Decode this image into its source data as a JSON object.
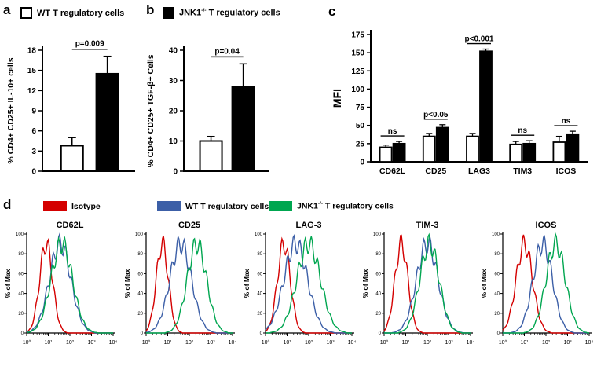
{
  "panel_labels": {
    "a": "a",
    "b": "b",
    "c": "c",
    "d": "d"
  },
  "legend_top": {
    "wt_label": "WT T regulatory cells",
    "jnk_base": "JNK1",
    "jnk_sup": "-/-",
    "jnk_rest": "T regulatory cells"
  },
  "legend_d": {
    "isotype": "Isotype",
    "wt_label": "WT T regulatory cells",
    "jnk_base": "JNK1",
    "jnk_sup": "-/-",
    "jnk_rest": "T regulatory cells"
  },
  "colors": {
    "bar_white": "#ffffff",
    "bar_black": "#000000",
    "isotype_red": "#d40000",
    "wt_blue": "#3c5fa7",
    "jnk_green": "#00a650"
  },
  "chart_data": [
    {
      "id": "panel_a",
      "type": "bar",
      "ylabel": "% CD4+ CD25+ IL-10+ cells",
      "ylim": [
        0,
        18
      ],
      "yticks": [
        0,
        3,
        6,
        9,
        12,
        15,
        18
      ],
      "series": [
        {
          "name": "WT T regulatory cells",
          "value": 3.8,
          "error": 1.2,
          "fill": "#ffffff"
        },
        {
          "name": "JNK1-/- T regulatory cells",
          "value": 14.5,
          "error": 2.6,
          "fill": "#000000"
        }
      ],
      "p_label": "p=0.009"
    },
    {
      "id": "panel_b",
      "type": "bar",
      "ylabel": "% CD4+ CD25+ TGF-β+ Cells",
      "ylim": [
        0,
        40
      ],
      "yticks": [
        0,
        10,
        20,
        30,
        40
      ],
      "series": [
        {
          "name": "WT T regulatory cells",
          "value": 10,
          "error": 1.5,
          "fill": "#ffffff"
        },
        {
          "name": "JNK1-/- T regulatory cells",
          "value": 28,
          "error": 7.5,
          "fill": "#000000"
        }
      ],
      "p_label": "p=0.04"
    },
    {
      "id": "panel_c",
      "type": "grouped-bar",
      "ylabel": "MFI",
      "ylim": [
        0,
        175
      ],
      "yticks": [
        0,
        25,
        50,
        75,
        100,
        125,
        150,
        175
      ],
      "categories": [
        "CD62L",
        "CD25",
        "LAG3",
        "TIM3",
        "ICOS"
      ],
      "series": [
        {
          "name": "WT T regulatory cells",
          "fill": "#ffffff",
          "values": [
            20,
            35,
            35,
            24,
            27
          ],
          "errors": [
            3,
            4,
            4,
            4,
            8
          ]
        },
        {
          "name": "JNK1-/- T regulatory cells",
          "fill": "#000000",
          "values": [
            25,
            47,
            152,
            25,
            38
          ],
          "errors": [
            3,
            4,
            3,
            4,
            4
          ]
        }
      ],
      "annotations": [
        "ns",
        "p<0.05",
        "p<0.001",
        "ns",
        "ns"
      ]
    },
    {
      "id": "panel_d",
      "type": "histograms",
      "ylabel": "% of Max",
      "yticks": [
        0,
        20,
        40,
        60,
        80,
        100
      ],
      "xtick_labels": [
        "10⁰",
        "10¹",
        "10²",
        "10³",
        "10⁴"
      ],
      "series_colors": {
        "red": "#d40000",
        "blue": "#3c5fa7",
        "green": "#00a650"
      },
      "plots": [
        {
          "title": "CD62L",
          "curves": [
            {
              "series": "red",
              "peak": 0.9,
              "sigma": 0.3
            },
            {
              "series": "blue",
              "peak": 1.55,
              "sigma": 0.5
            },
            {
              "series": "green",
              "peak": 1.62,
              "sigma": 0.5
            }
          ]
        },
        {
          "title": "CD25",
          "curves": [
            {
              "series": "red",
              "peak": 0.75,
              "sigma": 0.28
            },
            {
              "series": "blue",
              "peak": 1.6,
              "sigma": 0.5
            },
            {
              "series": "green",
              "peak": 2.35,
              "sigma": 0.45
            }
          ]
        },
        {
          "title": "LAG-3",
          "curves": [
            {
              "series": "red",
              "peak": 0.85,
              "sigma": 0.3
            },
            {
              "series": "blue",
              "peak": 1.4,
              "sigma": 0.55
            },
            {
              "series": "green",
              "peak": 2.0,
              "sigma": 0.55
            }
          ]
        },
        {
          "title": "TIM-3",
          "curves": [
            {
              "series": "red",
              "peak": 0.8,
              "sigma": 0.3
            },
            {
              "series": "blue",
              "peak": 2.0,
              "sigma": 0.5
            },
            {
              "series": "green",
              "peak": 2.1,
              "sigma": 0.45
            }
          ]
        },
        {
          "title": "ICOS",
          "curves": [
            {
              "series": "red",
              "peak": 1.0,
              "sigma": 0.38
            },
            {
              "series": "blue",
              "peak": 1.85,
              "sigma": 0.45
            },
            {
              "series": "green",
              "peak": 2.45,
              "sigma": 0.45
            }
          ]
        }
      ]
    }
  ]
}
